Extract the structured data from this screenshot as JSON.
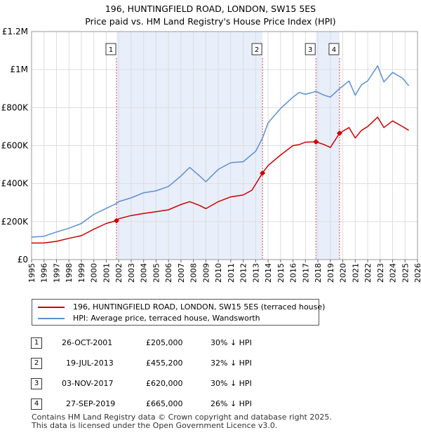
{
  "title_line1": "196, HUNTINGFIELD ROAD, LONDON, SW15 5ES",
  "title_line2": "Price paid vs. HM Land Registry's House Price Index (HPI)",
  "colors": {
    "property": "#cc0000",
    "hpi": "#5b8fd4",
    "shade": "#e8eefa",
    "grid": "#dddddd",
    "marker_line": "#dd4444"
  },
  "chart_data": {
    "type": "line",
    "title": "Price paid vs. HM Land Registry's House Price Index (HPI)",
    "xlim": [
      1995,
      2026
    ],
    "ylim": [
      0,
      1200000
    ],
    "x_ticks": [
      1995,
      1996,
      1997,
      1998,
      1999,
      2000,
      2001,
      2002,
      2003,
      2004,
      2005,
      2006,
      2007,
      2008,
      2009,
      2010,
      2011,
      2012,
      2013,
      2014,
      2015,
      2016,
      2017,
      2018,
      2019,
      2020,
      2021,
      2022,
      2023,
      2024,
      2025,
      2026
    ],
    "y_ticks": [
      {
        "value": 0,
        "label": "£0"
      },
      {
        "value": 200000,
        "label": "£200K"
      },
      {
        "value": 400000,
        "label": "£400K"
      },
      {
        "value": 600000,
        "label": "£600K"
      },
      {
        "value": 800000,
        "label": "£800K"
      },
      {
        "value": 1000000,
        "label": "£1M"
      },
      {
        "value": 1200000,
        "label": "£1.2M"
      }
    ],
    "shaded_ranges": [
      [
        2001.82,
        2013.55
      ],
      [
        2017.84,
        2019.74
      ]
    ],
    "series": [
      {
        "name": "196, HUNTINGFIELD ROAD, LONDON, SW15 5ES (terraced house)",
        "color": "#cc0000",
        "points": [
          [
            1995,
            87000
          ],
          [
            1996,
            88000
          ],
          [
            1997,
            96000
          ],
          [
            1998,
            112000
          ],
          [
            1999,
            126000
          ],
          [
            2000,
            160000
          ],
          [
            2001,
            190000
          ],
          [
            2001.82,
            205000
          ],
          [
            2002,
            215000
          ],
          [
            2003,
            232000
          ],
          [
            2004,
            243000
          ],
          [
            2005,
            252000
          ],
          [
            2006,
            262000
          ],
          [
            2007,
            290000
          ],
          [
            2007.7,
            305000
          ],
          [
            2008.5,
            285000
          ],
          [
            2009,
            268000
          ],
          [
            2010,
            305000
          ],
          [
            2011,
            330000
          ],
          [
            2012,
            340000
          ],
          [
            2012.7,
            365000
          ],
          [
            2013.55,
            455200
          ],
          [
            2014,
            495000
          ],
          [
            2015,
            550000
          ],
          [
            2016,
            600000
          ],
          [
            2016.5,
            605000
          ],
          [
            2017,
            618000
          ],
          [
            2017.84,
            620000
          ],
          [
            2018.5,
            605000
          ],
          [
            2019,
            590000
          ],
          [
            2019.74,
            665000
          ],
          [
            2020.5,
            695000
          ],
          [
            2021,
            640000
          ],
          [
            2021.5,
            680000
          ],
          [
            2022,
            700000
          ],
          [
            2022.8,
            750000
          ],
          [
            2023.3,
            695000
          ],
          [
            2024,
            730000
          ],
          [
            2024.8,
            700000
          ],
          [
            2025.3,
            680000
          ]
        ]
      },
      {
        "name": "HPI: Average price, terraced house, Wandsworth",
        "color": "#5b8fd4",
        "points": [
          [
            1995,
            118000
          ],
          [
            1996,
            123000
          ],
          [
            1997,
            145000
          ],
          [
            1998,
            165000
          ],
          [
            1999,
            190000
          ],
          [
            2000,
            238000
          ],
          [
            2001,
            270000
          ],
          [
            2001.82,
            295000
          ],
          [
            2002,
            305000
          ],
          [
            2003,
            325000
          ],
          [
            2004,
            352000
          ],
          [
            2005,
            362000
          ],
          [
            2006,
            385000
          ],
          [
            2007,
            440000
          ],
          [
            2007.7,
            485000
          ],
          [
            2008.5,
            440000
          ],
          [
            2009,
            410000
          ],
          [
            2010,
            475000
          ],
          [
            2011,
            510000
          ],
          [
            2012,
            515000
          ],
          [
            2013,
            570000
          ],
          [
            2013.55,
            640000
          ],
          [
            2014,
            720000
          ],
          [
            2015,
            795000
          ],
          [
            2016,
            855000
          ],
          [
            2016.5,
            880000
          ],
          [
            2017,
            870000
          ],
          [
            2017.84,
            885000
          ],
          [
            2018.5,
            865000
          ],
          [
            2019,
            855000
          ],
          [
            2019.74,
            900000
          ],
          [
            2020.5,
            940000
          ],
          [
            2021,
            865000
          ],
          [
            2021.5,
            920000
          ],
          [
            2022,
            940000
          ],
          [
            2022.8,
            1020000
          ],
          [
            2023.3,
            935000
          ],
          [
            2024,
            985000
          ],
          [
            2024.8,
            955000
          ],
          [
            2025.3,
            915000
          ]
        ]
      }
    ],
    "sales": [
      {
        "num": "1",
        "x": 2001.82,
        "price": 205000
      },
      {
        "num": "2",
        "x": 2013.55,
        "price": 455200
      },
      {
        "num": "3",
        "x": 2017.84,
        "price": 620000
      },
      {
        "num": "4",
        "x": 2019.74,
        "price": 665000
      }
    ]
  },
  "legend": {
    "property_label": "196, HUNTINGFIELD ROAD, LONDON, SW15 5ES (terraced house)",
    "hpi_label": "HPI: Average price, terraced house, Wandsworth"
  },
  "table": [
    {
      "num": "1",
      "date": "26-OCT-2001",
      "price": "£205,000",
      "hpi": "30% ↓ HPI"
    },
    {
      "num": "2",
      "date": "19-JUL-2013",
      "price": "£455,200",
      "hpi": "32% ↓ HPI"
    },
    {
      "num": "3",
      "date": "03-NOV-2017",
      "price": "£620,000",
      "hpi": "30% ↓ HPI"
    },
    {
      "num": "4",
      "date": "27-SEP-2019",
      "price": "£665,000",
      "hpi": "26% ↓ HPI"
    }
  ],
  "footer": {
    "line1": "Contains HM Land Registry data © Crown copyright and database right 2025.",
    "line2": "This data is licensed under the Open Government Licence v3.0."
  }
}
